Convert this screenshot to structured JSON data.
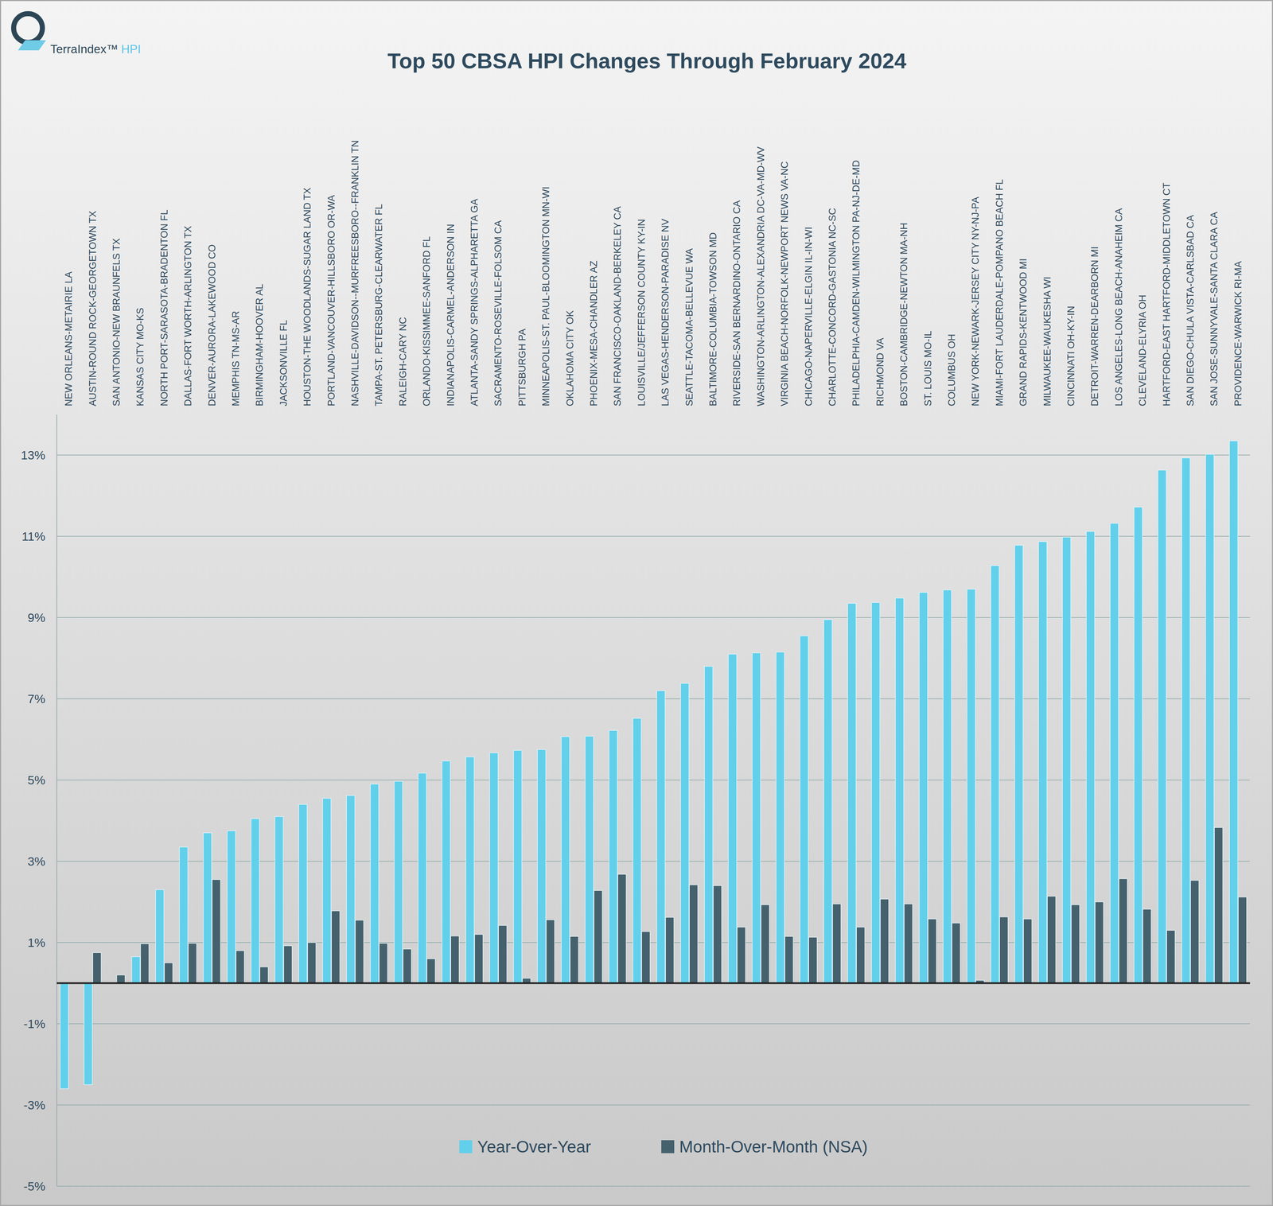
{
  "chart_data": {
    "type": "bar",
    "title": "Top 50 CBSA HPI Changes Through February 2024",
    "brand": "TerraIndex™",
    "brand_suffix": "HPI",
    "categories": [
      "NEW ORLEANS-METAIRIE LA",
      "AUSTIN-ROUND ROCK-GEORGETOWN TX",
      "SAN ANTONIO-NEW BRAUNFELS TX",
      "KANSAS CITY MO-KS",
      "NORTH PORT-SARASOTA-BRADENTON FL",
      "DALLAS-FORT WORTH-ARLINGTON TX",
      "DENVER-AURORA-LAKEWOOD CO",
      "MEMPHIS TN-MS-AR",
      "BIRMINGHAM-HOOVER AL",
      "JACKSONVILLE FL",
      "HOUSTON-THE WOODLANDS-SUGAR LAND TX",
      "PORTLAND-VANCOUVER-HILLSBORO OR-WA",
      "NASHVILLE-DAVIDSON--MURFREESBORO--FRANKLIN TN",
      "TAMPA-ST. PETERSBURG-CLEARWATER FL",
      "RALEIGH-CARY NC",
      "ORLANDO-KISSIMMEE-SANFORD FL",
      "INDIANAPOLIS-CARMEL-ANDERSON IN",
      "ATLANTA-SANDY SPRINGS-ALPHARETTA GA",
      "SACRAMENTO-ROSEVILLE-FOLSOM CA",
      "PITTSBURGH PA",
      "MINNEAPOLIS-ST. PAUL-BLOOMINGTON MN-WI",
      "OKLAHOMA CITY OK",
      "PHOENIX-MESA-CHANDLER AZ",
      "SAN FRANCISCO-OAKLAND-BERKELEY CA",
      "LOUISVILLE/JEFFERSON COUNTY KY-IN",
      "LAS VEGAS-HENDERSON-PARADISE NV",
      "SEATTLE-TACOMA-BELLEVUE WA",
      "BALTIMORE-COLUMBIA-TOWSON MD",
      "RIVERSIDE-SAN BERNARDINO-ONTARIO CA",
      "WASHINGTON-ARLINGTON-ALEXANDRIA DC-VA-MD-WV",
      "VIRGINIA BEACH-NORFOLK-NEWPORT NEWS VA-NC",
      "CHICAGO-NAPERVILLE-ELGIN IL-IN-WI",
      "CHARLOTTE-CONCORD-GASTONIA NC-SC",
      "PHILADELPHIA-CAMDEN-WILMINGTON PA-NJ-DE-MD",
      "RICHMOND VA",
      "BOSTON-CAMBRIDGE-NEWTON MA-NH",
      "ST. LOUIS MO-IL",
      "COLUMBUS OH",
      "NEW YORK-NEWARK-JERSEY CITY NY-NJ-PA",
      "MIAMI-FORT LAUDERDALE-POMPANO BEACH FL",
      "GRAND RAPIDS-KENTWOOD MI",
      "MILWAUKEE-WAUKESHA WI",
      "CINCINNATI OH-KY-IN",
      "DETROIT-WARREN-DEARBORN MI",
      "LOS ANGELES-LONG BEACH-ANAHEIM CA",
      "CLEVELAND-ELYRIA OH",
      "HARTFORD-EAST HARTFORD-MIDDLETOWN CT",
      "SAN DIEGO-CHULA VISTA-CARLSBAD CA",
      "SAN JOSE-SUNNYVALE-SANTA CLARA CA",
      "PROVIDENCE-WARWICK RI-MA"
    ],
    "series": [
      {
        "name": "Year-Over-Year",
        "color": "#62d0eb",
        "values": [
          -2.6,
          -2.5,
          0,
          0.65,
          2.3,
          3.35,
          3.7,
          3.75,
          4.05,
          4.1,
          4.4,
          4.55,
          4.62,
          4.9,
          4.97,
          5.17,
          5.47,
          5.57,
          5.67,
          5.73,
          5.75,
          6.07,
          6.08,
          6.22,
          6.52,
          7.2,
          7.38,
          7.8,
          8.1,
          8.13,
          8.15,
          8.55,
          8.95,
          9.35,
          9.37,
          9.48,
          9.62,
          9.68,
          9.7,
          10.28,
          10.78,
          10.87,
          10.98,
          11.12,
          11.32,
          11.72,
          12.63,
          12.93,
          13.02,
          13.35
        ]
      },
      {
        "name": "Month-Over-Month (NSA)",
        "color": "#45616d",
        "values": [
          0,
          0.75,
          0.2,
          0.97,
          0.5,
          0.98,
          2.55,
          0.8,
          0.4,
          0.92,
          1.0,
          1.78,
          1.55,
          0.98,
          0.84,
          0.6,
          1.16,
          1.2,
          1.42,
          0.12,
          1.56,
          1.15,
          2.28,
          2.68,
          1.27,
          1.62,
          2.42,
          2.4,
          1.38,
          1.93,
          1.15,
          1.13,
          1.95,
          1.38,
          2.07,
          1.95,
          1.58,
          1.48,
          0.07,
          1.63,
          1.58,
          2.14,
          1.93,
          2.0,
          2.57,
          1.82,
          1.3,
          2.53,
          3.83,
          2.12
        ]
      }
    ],
    "ylim": [
      -5,
      14
    ],
    "yticks": [
      {
        "value": -5,
        "label": "-5%"
      },
      {
        "value": -3,
        "label": "-3%"
      },
      {
        "value": -1,
        "label": "-1%"
      },
      {
        "value": 1,
        "label": "1%"
      },
      {
        "value": 3,
        "label": "3%"
      },
      {
        "value": 5,
        "label": "5%"
      },
      {
        "value": 7,
        "label": "7%"
      },
      {
        "value": 9,
        "label": "9%"
      },
      {
        "value": 11,
        "label": "11%"
      },
      {
        "value": 13,
        "label": "13%"
      }
    ],
    "grid": true,
    "legend": "bottom"
  }
}
